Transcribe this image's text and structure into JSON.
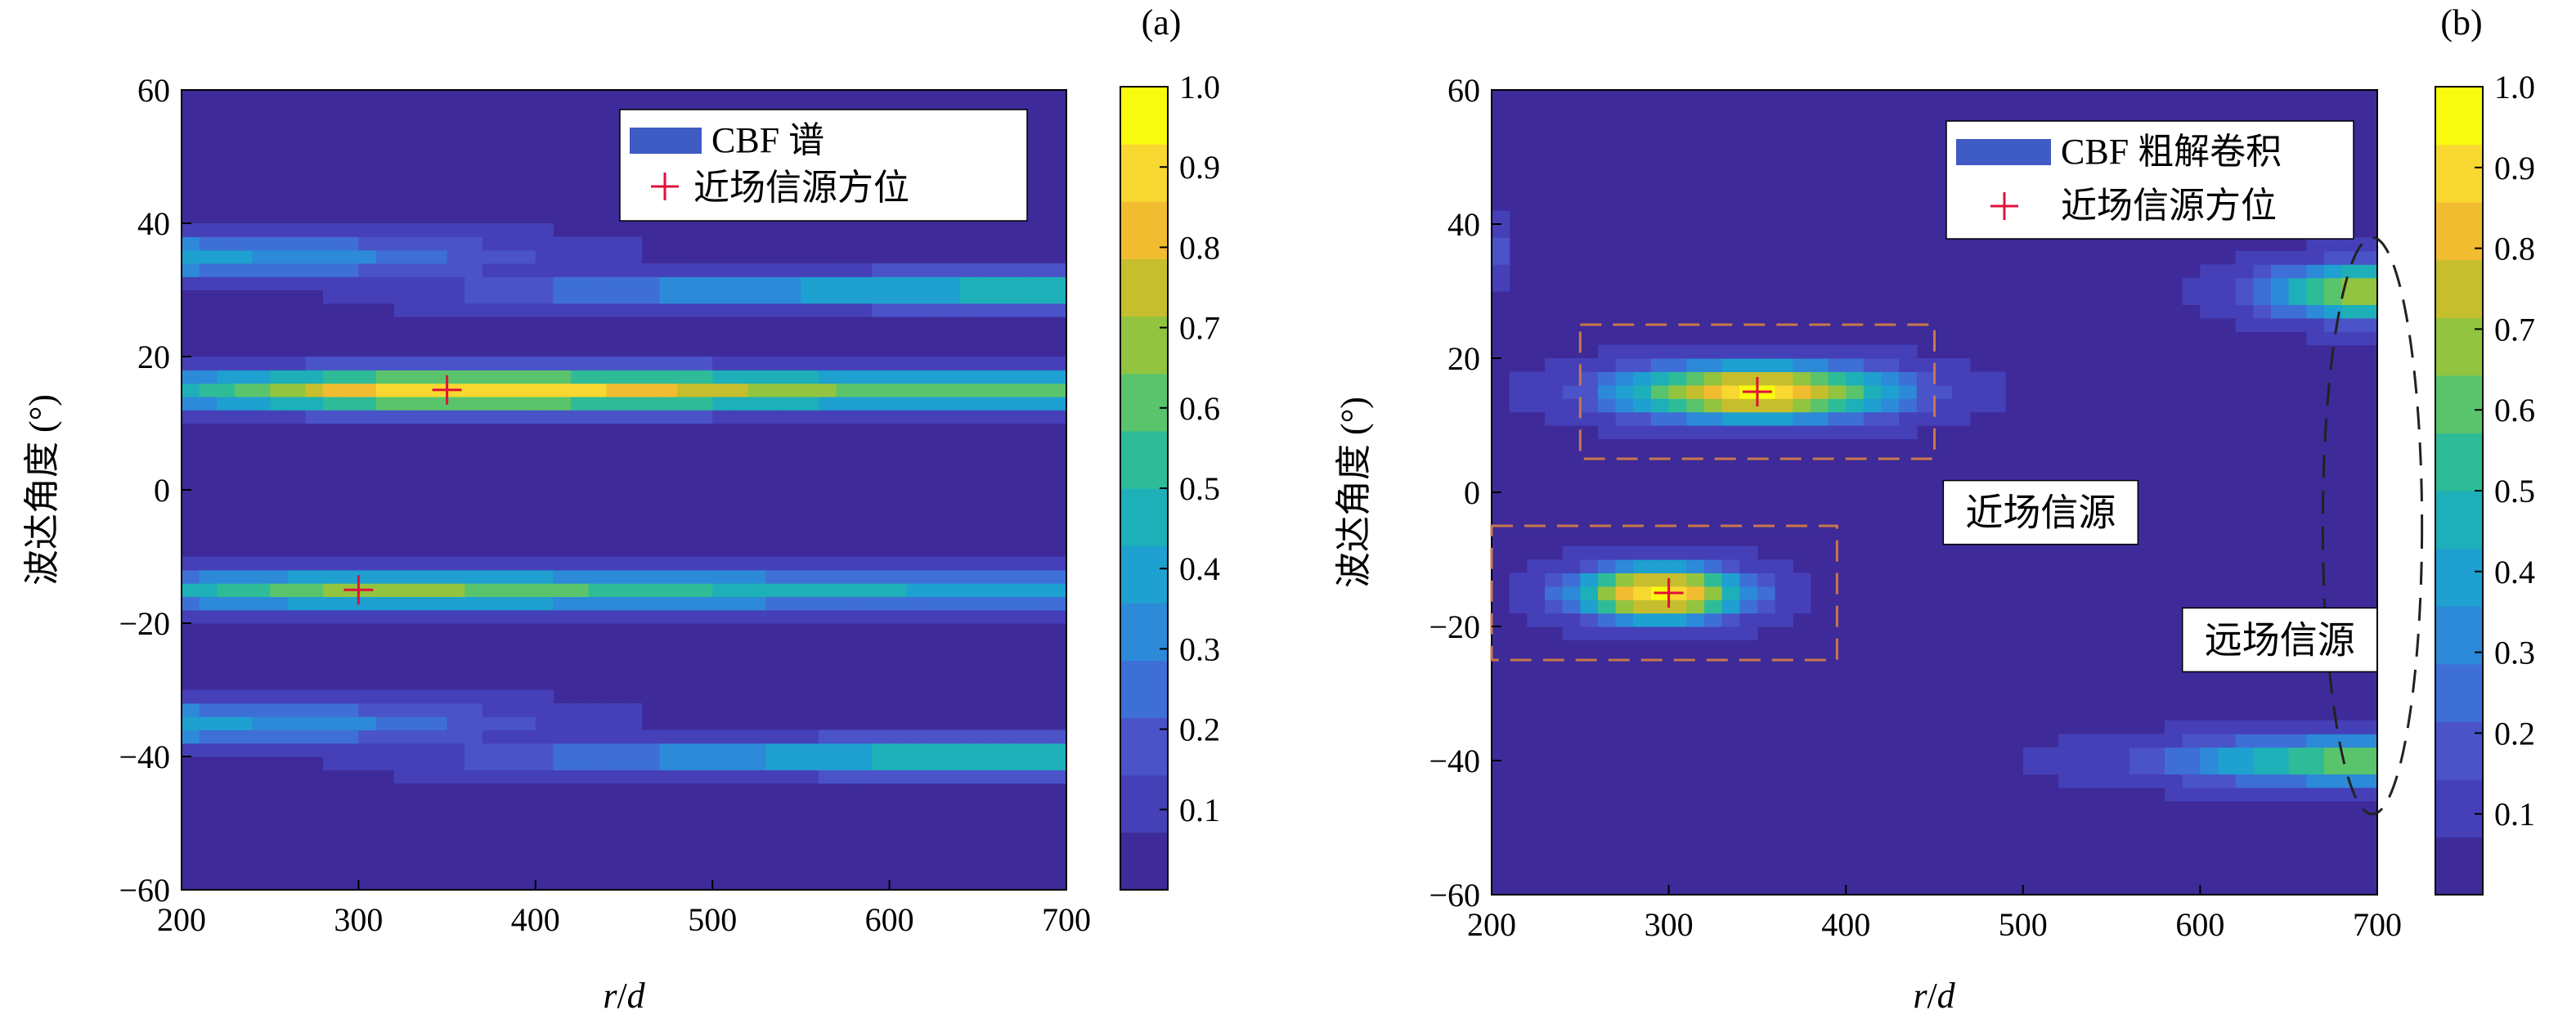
{
  "colors": {
    "background": "#3e2a98",
    "marker": "#e0103a",
    "near_box": "#c8784a",
    "ellipse": "#222222",
    "colormap": [
      "#3e2a98",
      "#4540b8",
      "#4a53c8",
      "#3e6fd6",
      "#2c8ad8",
      "#1ea0d0",
      "#1db0b8",
      "#2ebc98",
      "#5ac46c",
      "#92c440",
      "#c6be2c",
      "#f2bc30",
      "#f8d830",
      "#f9fb0e"
    ]
  },
  "icons": {
    "marker": "plus-icon"
  },
  "chart_data": [
    {
      "panel_label": "(a)",
      "type": "heatmap",
      "xlabel_italic_r": "r",
      "xlabel_slash": "/",
      "xlabel_italic_d": "d",
      "ylabel": "波达角度 (°)",
      "xlim": [
        200,
        700
      ],
      "ylim": [
        -60,
        60
      ],
      "xticks": [
        "200",
        "300",
        "400",
        "500",
        "600",
        "700"
      ],
      "yticks": [
        "60",
        "40",
        "20",
        "0",
        "−20",
        "−40",
        "−60"
      ],
      "legend": [
        {
          "label": "CBF 谱",
          "kind": "patch"
        },
        {
          "label": "近场信源方位",
          "kind": "marker"
        }
      ],
      "markers": [
        {
          "x": 350,
          "y": 15
        },
        {
          "x": 300,
          "y": -15
        }
      ],
      "bands": [
        {
          "y": 15,
          "x0": 200,
          "x1": 700,
          "sigma_y": 2.2,
          "profile": [
            [
              200,
              0.45
            ],
            [
              300,
              0.85
            ],
            [
              350,
              0.9
            ],
            [
              450,
              0.85
            ],
            [
              550,
              0.65
            ],
            [
              700,
              0.6
            ]
          ]
        },
        {
          "y": -15,
          "x0": 200,
          "x1": 700,
          "sigma_y": 2.0,
          "profile": [
            [
              200,
              0.45
            ],
            [
              260,
              0.6
            ],
            [
              300,
              0.7
            ],
            [
              400,
              0.6
            ],
            [
              550,
              0.45
            ],
            [
              700,
              0.4
            ]
          ]
        },
        {
          "y": 35,
          "x0": 200,
          "x1": 460,
          "sigma_y": 2.5,
          "profile": [
            [
              200,
              0.4
            ],
            [
              300,
              0.3
            ],
            [
              460,
              0.05
            ]
          ]
        },
        {
          "y": 30,
          "x0": 280,
          "x1": 700,
          "sigma_y": 2.0,
          "profile": [
            [
              280,
              0.05
            ],
            [
              450,
              0.3
            ],
            [
              600,
              0.45
            ],
            [
              700,
              0.55
            ]
          ]
        },
        {
          "y": -35,
          "x0": 200,
          "x1": 460,
          "sigma_y": 2.5,
          "profile": [
            [
              200,
              0.4
            ],
            [
              300,
              0.3
            ],
            [
              460,
              0.05
            ]
          ]
        },
        {
          "y": -40,
          "x0": 280,
          "x1": 700,
          "sigma_y": 2.0,
          "profile": [
            [
              280,
              0.05
            ],
            [
              450,
              0.3
            ],
            [
              600,
              0.5
            ],
            [
              700,
              0.55
            ]
          ]
        }
      ],
      "spots": [],
      "colorbar": {
        "min": 0,
        "max": 1,
        "ticks": [
          "1.0",
          "0.9",
          "0.8",
          "0.7",
          "0.6",
          "0.5",
          "0.4",
          "0.3",
          "0.2",
          "0.1"
        ]
      }
    },
    {
      "panel_label": "(b)",
      "type": "heatmap",
      "xlabel_italic_r": "r",
      "xlabel_slash": "/",
      "xlabel_italic_d": "d",
      "ylabel": "波达角度 (°)",
      "xlim": [
        200,
        700
      ],
      "ylim": [
        -60,
        60
      ],
      "xticks": [
        "200",
        "300",
        "400",
        "500",
        "600",
        "700"
      ],
      "yticks": [
        "60",
        "40",
        "20",
        "0",
        "−20",
        "−40",
        "−60"
      ],
      "legend": [
        {
          "label": "CBF 粗解卷积",
          "kind": "patch"
        },
        {
          "label": "近场信源方位",
          "kind": "marker"
        }
      ],
      "markers": [
        {
          "x": 350,
          "y": 15
        },
        {
          "x": 300,
          "y": -15
        }
      ],
      "bands": [],
      "spots": [
        {
          "x": 350,
          "y": 15,
          "sx": 55,
          "sy": 3.0,
          "amp": 0.95
        },
        {
          "x": 295,
          "y": -15,
          "sx": 35,
          "sy": 3.0,
          "amp": 0.95
        },
        {
          "x": 700,
          "y": 30,
          "sx": 45,
          "sy": 3.0,
          "amp": 0.75
        },
        {
          "x": 700,
          "y": -40,
          "sx": 85,
          "sy": 2.5,
          "amp": 0.65
        },
        {
          "x": 200,
          "y": 36,
          "sx": 5,
          "sy": 3.0,
          "amp": 0.3
        }
      ],
      "near_field_boxes": [
        {
          "x0": 250,
          "x1": 450,
          "y0": 5,
          "y1": 25
        },
        {
          "x0": 200,
          "x1": 395,
          "y0": -25,
          "y1": -5
        }
      ],
      "far_field_ellipse": {
        "cx": 700,
        "cy": -5,
        "rx": 28,
        "ry": 43
      },
      "annotations": {
        "near_field": {
          "text": "近场信源",
          "x": 455,
          "y": -3
        },
        "far_field": {
          "text": "远场信源",
          "x": 590,
          "y": -22
        }
      },
      "colorbar": {
        "min": 0,
        "max": 1,
        "ticks": [
          "1.0",
          "0.9",
          "0.8",
          "0.7",
          "0.6",
          "0.5",
          "0.4",
          "0.3",
          "0.2",
          "0.1"
        ]
      }
    }
  ]
}
